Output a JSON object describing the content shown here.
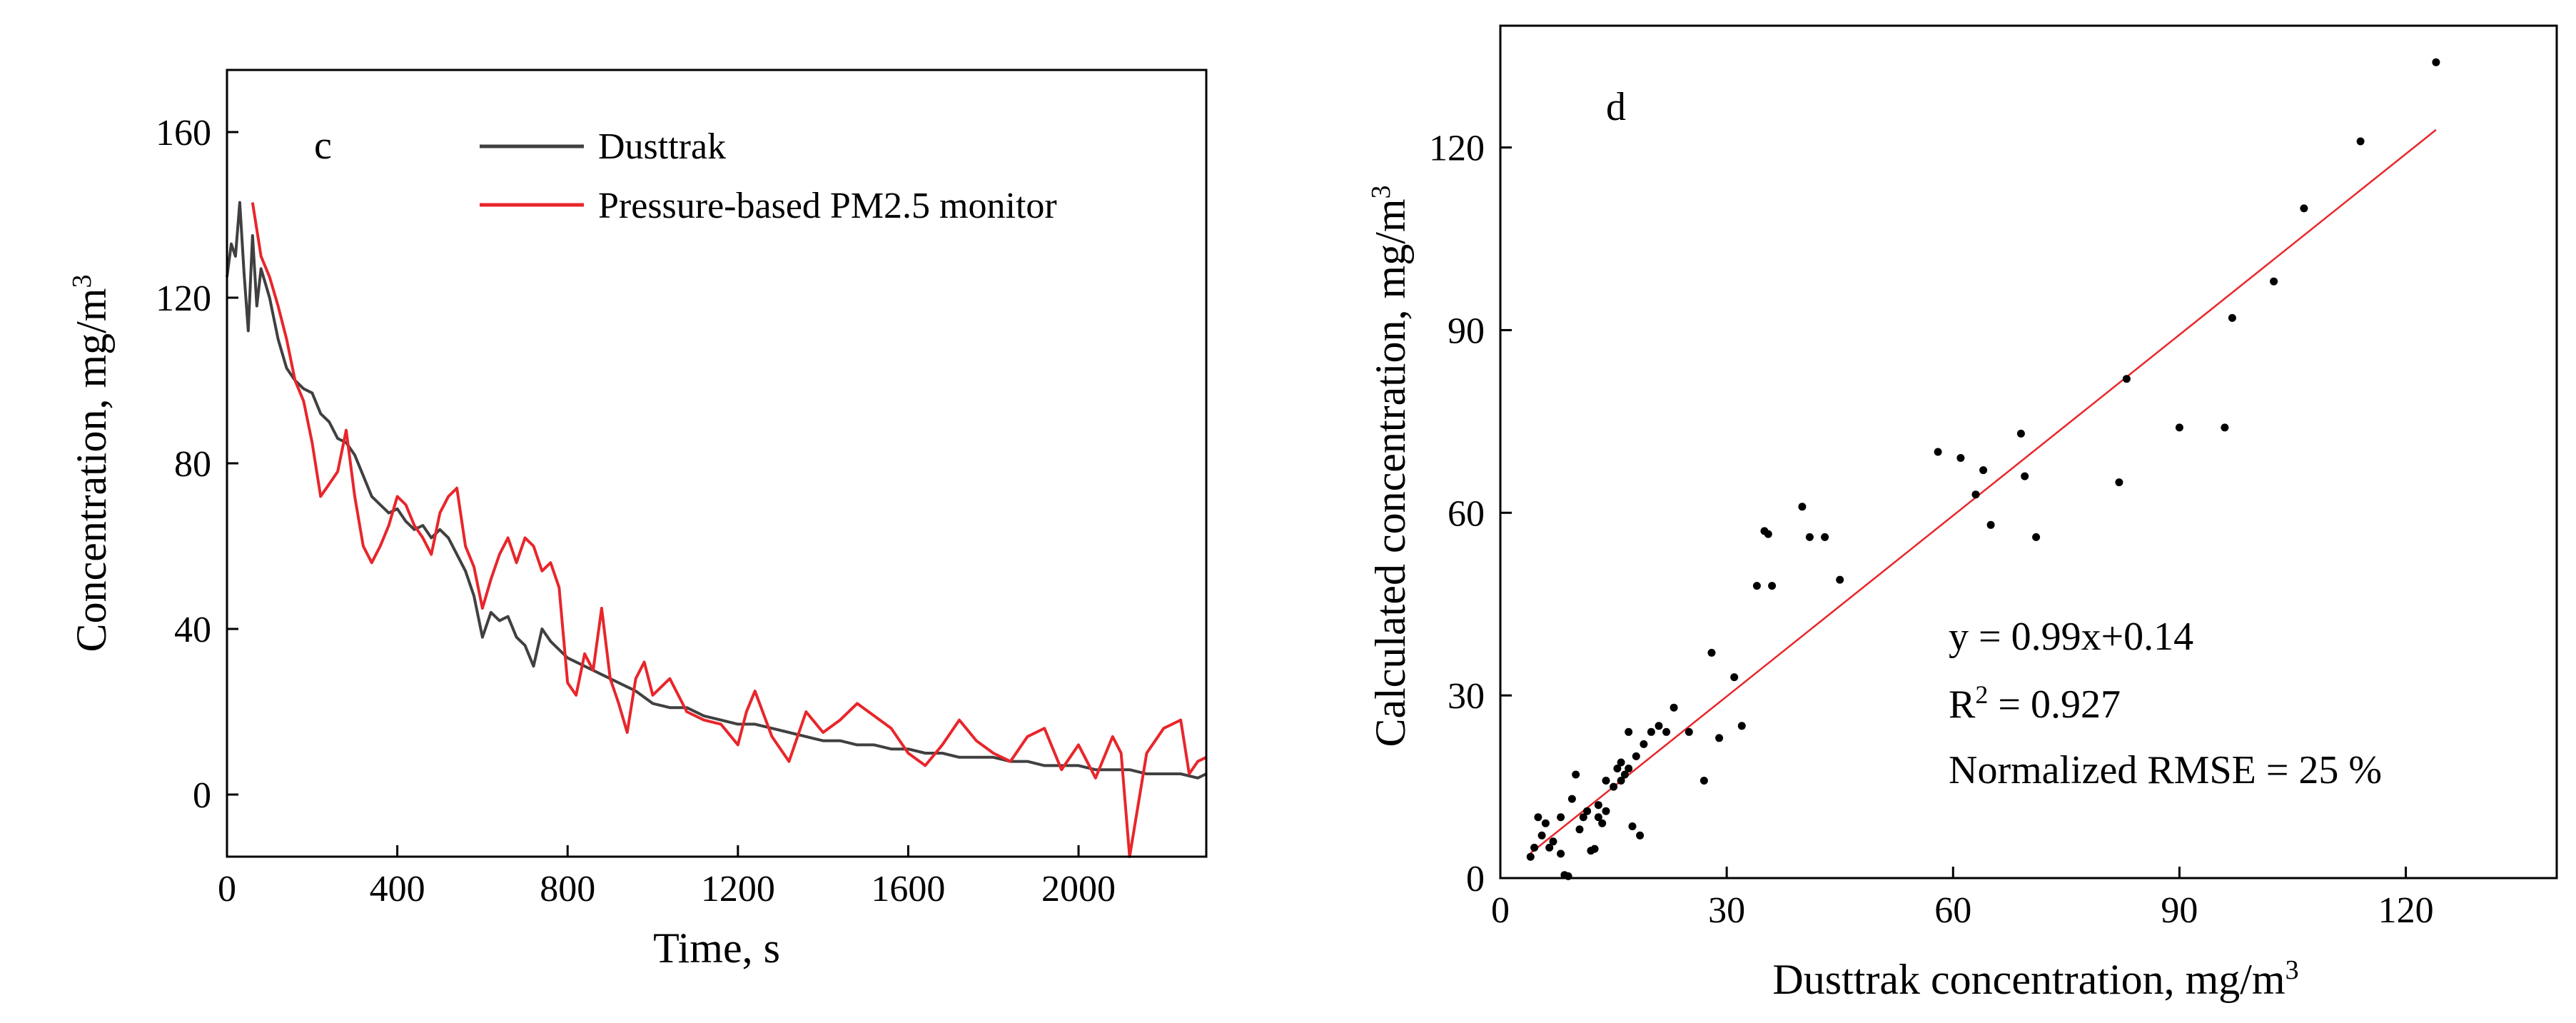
{
  "chart_data": [
    {
      "id": "c",
      "type": "line",
      "panel_label": "c",
      "xlabel": "Time, s",
      "ylabel": "Concentration, mg/m",
      "ylabel_sup": "3",
      "xlim": [
        0,
        2300
      ],
      "ylim": [
        -15,
        175
      ],
      "xticks": [
        0,
        400,
        800,
        1200,
        1600,
        2000
      ],
      "yticks": [
        0,
        40,
        80,
        120,
        160
      ],
      "legend_position": "top-right",
      "series": [
        {
          "name": "Dusttrak",
          "color": "#404040",
          "x": [
            0,
            10,
            20,
            30,
            40,
            50,
            60,
            70,
            80,
            100,
            120,
            140,
            160,
            180,
            200,
            220,
            240,
            260,
            280,
            300,
            320,
            340,
            360,
            380,
            400,
            420,
            440,
            460,
            480,
            500,
            520,
            540,
            560,
            580,
            600,
            620,
            640,
            660,
            680,
            700,
            720,
            740,
            760,
            780,
            800,
            840,
            880,
            920,
            960,
            1000,
            1040,
            1080,
            1120,
            1160,
            1200,
            1240,
            1280,
            1320,
            1360,
            1400,
            1440,
            1480,
            1520,
            1560,
            1600,
            1640,
            1680,
            1720,
            1760,
            1800,
            1840,
            1880,
            1920,
            1960,
            2000,
            2040,
            2080,
            2120,
            2160,
            2200,
            2240,
            2280,
            2300
          ],
          "values": [
            125,
            133,
            130,
            143,
            126,
            112,
            135,
            118,
            127,
            120,
            110,
            103,
            100,
            98,
            97,
            92,
            90,
            86,
            85,
            82,
            77,
            72,
            70,
            68,
            69,
            66,
            64,
            65,
            62,
            64,
            62,
            58,
            54,
            48,
            38,
            44,
            42,
            43,
            38,
            36,
            31,
            40,
            37,
            35,
            33,
            31,
            29,
            27,
            25,
            22,
            21,
            21,
            19,
            18,
            17,
            17,
            16,
            15,
            14,
            13,
            13,
            12,
            12,
            11,
            11,
            10,
            10,
            9,
            9,
            9,
            8,
            8,
            7,
            7,
            7,
            6,
            6,
            6,
            5,
            5,
            5,
            4,
            5
          ]
        },
        {
          "name": "Pressure-based PM2.5 monitor",
          "color": "#e8262b",
          "x": [
            60,
            80,
            100,
            120,
            140,
            160,
            180,
            200,
            220,
            240,
            260,
            280,
            300,
            320,
            340,
            360,
            380,
            400,
            420,
            440,
            460,
            480,
            500,
            520,
            540,
            560,
            580,
            600,
            620,
            640,
            660,
            680,
            700,
            720,
            740,
            760,
            780,
            800,
            820,
            840,
            860,
            880,
            900,
            920,
            940,
            960,
            980,
            1000,
            1040,
            1080,
            1120,
            1160,
            1200,
            1220,
            1240,
            1280,
            1320,
            1360,
            1400,
            1440,
            1480,
            1520,
            1560,
            1600,
            1640,
            1680,
            1720,
            1760,
            1800,
            1840,
            1880,
            1920,
            1960,
            2000,
            2040,
            2080,
            2100,
            2120,
            2160,
            2200,
            2240,
            2260,
            2280,
            2300
          ],
          "values": [
            143,
            130,
            125,
            118,
            110,
            100,
            95,
            85,
            72,
            75,
            78,
            88,
            72,
            60,
            56,
            60,
            65,
            72,
            70,
            65,
            62,
            58,
            68,
            72,
            74,
            60,
            55,
            45,
            52,
            58,
            62,
            56,
            62,
            60,
            54,
            56,
            50,
            27,
            24,
            34,
            30,
            45,
            28,
            22,
            15,
            28,
            32,
            24,
            28,
            20,
            18,
            17,
            12,
            20,
            25,
            14,
            8,
            20,
            15,
            18,
            22,
            19,
            16,
            10,
            7,
            12,
            18,
            13,
            10,
            8,
            14,
            16,
            6,
            12,
            4,
            14,
            10,
            -15,
            10,
            16,
            18,
            5,
            8,
            9
          ]
        }
      ]
    },
    {
      "id": "d",
      "type": "scatter",
      "panel_label": "d",
      "xlabel": "Dusttrak concentration, mg/m",
      "xlabel_sup": "3",
      "ylabel": "Calculated concentration, mg/m",
      "ylabel_sup": "3",
      "xlim": [
        0,
        140
      ],
      "ylim": [
        0,
        140
      ],
      "xticks": [
        0,
        30,
        60,
        90,
        120
      ],
      "yticks": [
        0,
        30,
        60,
        90,
        120
      ],
      "fit_line": {
        "slope": 0.99,
        "intercept": 0.14,
        "x_range": [
          4,
          124
        ],
        "color": "#e8262b"
      },
      "annotations": {
        "equation": "y = 0.99x+0.14",
        "r2_prefix": "R",
        "r2_sup": "2",
        "r2_value": " = 0.927",
        "rmse": "Normalized RMSE = 25 %"
      },
      "points": [
        [
          4,
          3.5
        ],
        [
          4.5,
          5
        ],
        [
          5,
          10
        ],
        [
          5.5,
          7
        ],
        [
          6,
          9
        ],
        [
          6.5,
          5
        ],
        [
          7,
          6
        ],
        [
          8,
          4
        ],
        [
          8,
          10
        ],
        [
          8.5,
          0.5
        ],
        [
          9,
          0.3
        ],
        [
          9.5,
          13
        ],
        [
          10,
          17
        ],
        [
          10.5,
          8
        ],
        [
          11,
          10
        ],
        [
          11.5,
          11
        ],
        [
          12,
          4.5
        ],
        [
          12.5,
          4.8
        ],
        [
          13,
          10
        ],
        [
          13,
          12
        ],
        [
          13.5,
          9
        ],
        [
          14,
          11
        ],
        [
          14,
          16
        ],
        [
          15,
          15
        ],
        [
          15.5,
          18
        ],
        [
          16,
          16
        ],
        [
          16,
          19
        ],
        [
          16.5,
          17
        ],
        [
          17,
          18
        ],
        [
          17,
          24
        ],
        [
          17.5,
          8.5
        ],
        [
          18,
          20
        ],
        [
          18.5,
          7
        ],
        [
          19,
          22
        ],
        [
          20,
          24
        ],
        [
          21,
          25
        ],
        [
          22,
          24
        ],
        [
          23,
          28
        ],
        [
          25,
          24
        ],
        [
          27,
          16
        ],
        [
          28,
          37
        ],
        [
          29,
          23
        ],
        [
          31,
          33
        ],
        [
          32,
          25
        ],
        [
          34,
          48
        ],
        [
          35,
          57
        ],
        [
          35.5,
          56.5
        ],
        [
          36,
          48
        ],
        [
          40,
          61
        ],
        [
          41,
          56
        ],
        [
          43,
          56
        ],
        [
          45,
          49
        ],
        [
          58,
          70
        ],
        [
          61,
          69
        ],
        [
          63,
          63
        ],
        [
          64,
          67
        ],
        [
          65,
          58
        ],
        [
          69,
          73
        ],
        [
          69.5,
          66
        ],
        [
          71,
          56
        ],
        [
          82,
          65
        ],
        [
          83,
          82
        ],
        [
          90,
          74
        ],
        [
          96,
          74
        ],
        [
          97,
          92
        ],
        [
          102.5,
          98
        ],
        [
          106.5,
          110
        ],
        [
          114,
          121
        ],
        [
          124,
          134
        ]
      ]
    }
  ]
}
